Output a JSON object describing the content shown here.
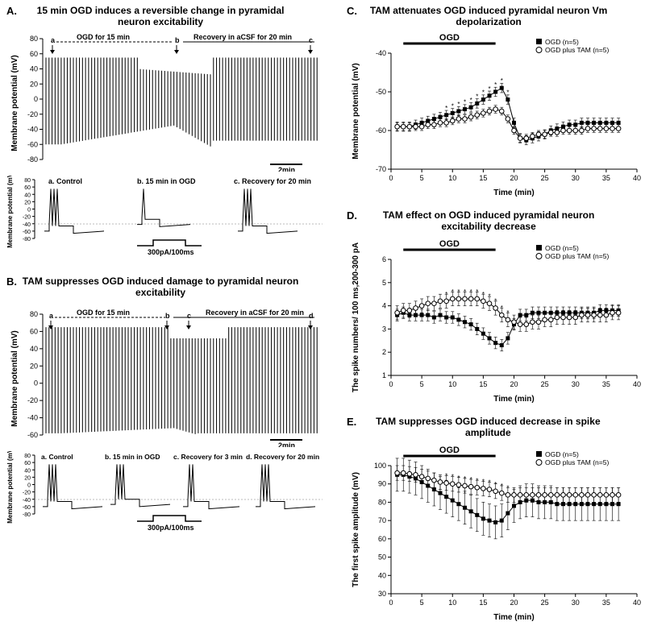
{
  "colors": {
    "bg": "#ffffff",
    "ink": "#000000",
    "trace": "#000000",
    "grid": "#e0e0e0"
  },
  "panelA": {
    "label": "A.",
    "title": "15 min OGD induces a reversible change in pyramidal neuron excitability",
    "annot_a": "a",
    "annot_b": "b",
    "annot_c": "c",
    "ogd_label": "OGD for 15 min",
    "recovery_label": "Recovery in aCSF for 20 min",
    "ylabel": "Membrane potential (mV)",
    "yticks": [
      -80,
      -60,
      -40,
      -20,
      0,
      20,
      40,
      60,
      80
    ],
    "scalebar": "2min",
    "inset": {
      "ylabel": "Membrane potential (mV)",
      "yticks": [
        -80,
        -60,
        -40,
        -20,
        0,
        20,
        40,
        60,
        80
      ],
      "labels": [
        "a. Control",
        "b. 15 min in OGD",
        "c. Recovery for 20 min"
      ],
      "stim": "300pA/100ms"
    }
  },
  "panelB": {
    "label": "B.",
    "title": "TAM suppresses OGD induced  damage to pyramidal neuron excitability",
    "annot_a": "a",
    "annot_b": "b",
    "annot_c": "c",
    "annot_d": "d",
    "ogd_label": "OGD  for 15 min",
    "recovery_label": "Recovery in aCSF for 20 min",
    "ylabel": "Membrane potential (mV)",
    "yticks": [
      -60,
      -40,
      -20,
      0,
      20,
      40,
      60,
      80
    ],
    "scalebar": "2min",
    "inset": {
      "ylabel": "Membrane potential (mV)",
      "yticks": [
        -80,
        -60,
        -40,
        -20,
        0,
        20,
        40,
        60,
        80
      ],
      "labels": [
        "a. Control",
        "b. 15 min in OGD",
        "c. Recovery for 3 min",
        "d. Recovery for 20 min"
      ],
      "stim": "300pA/100ms"
    }
  },
  "panelC": {
    "label": "C.",
    "title": "TAM attenuates OGD induced pyramidal neuron Vm depolarization",
    "ylabel": "Membrane potential (mV)",
    "xlabel": "Time (min)",
    "ylim": [
      -70,
      -40
    ],
    "ytick_step": 10,
    "xlim": [
      0,
      40
    ],
    "xtick_step": 5,
    "ogd_bar": {
      "start": 2,
      "end": 17,
      "label": "OGD"
    },
    "legend": {
      "ogd": "OGD (n=5)",
      "tam": "OGD plus TAM (n=5)"
    },
    "series": {
      "ogd_x": [
        1,
        2,
        3,
        4,
        5,
        6,
        7,
        8,
        9,
        10,
        11,
        12,
        13,
        14,
        15,
        16,
        17,
        18,
        19,
        20,
        21,
        22,
        23,
        24,
        25,
        26,
        27,
        28,
        29,
        30,
        31,
        32,
        33,
        34,
        35,
        36,
        37
      ],
      "ogd_y": [
        -59,
        -59,
        -59,
        -58.5,
        -58,
        -57.5,
        -57,
        -56.5,
        -56,
        -55.5,
        -55,
        -54.5,
        -54,
        -53,
        -52,
        -51,
        -50,
        -49,
        -52,
        -58,
        -62,
        -62.5,
        -62,
        -61.5,
        -61,
        -60,
        -59.5,
        -59,
        -58.5,
        -58.5,
        -58,
        -58,
        -58,
        -58,
        -58,
        -58,
        -58
      ],
      "ogd_err": 1.2,
      "tam_x": [
        1,
        2,
        3,
        4,
        5,
        6,
        7,
        8,
        9,
        10,
        11,
        12,
        13,
        14,
        15,
        16,
        17,
        18,
        19,
        20,
        21,
        22,
        23,
        24,
        25,
        26,
        27,
        28,
        29,
        30,
        31,
        32,
        33,
        34,
        35,
        36,
        37
      ],
      "tam_y": [
        -59,
        -59,
        -59,
        -59,
        -59,
        -58.5,
        -58.5,
        -58,
        -58,
        -57.5,
        -57,
        -57,
        -56.5,
        -56,
        -55.5,
        -55,
        -54.5,
        -55,
        -57,
        -60,
        -62,
        -62,
        -61.5,
        -61,
        -61,
        -60.5,
        -60.5,
        -60,
        -60,
        -60,
        -60,
        -59.5,
        -59.5,
        -59.5,
        -59.5,
        -59.5,
        -59.5
      ],
      "tam_err": 1.0
    },
    "marker_ogd": "square-filled",
    "marker_tam": "circle-open"
  },
  "panelD": {
    "label": "D.",
    "title": "TAM effect on OGD induced pyramidal neuron excitability decrease",
    "ylabel": "The spike numbers/ 100 ms,200-300 pA",
    "xlabel": "Time (min)",
    "ylim": [
      1,
      6
    ],
    "ytick_step": 1,
    "xlim": [
      0,
      40
    ],
    "xtick_step": 5,
    "ogd_bar": {
      "start": 2,
      "end": 17,
      "label": "OGD"
    },
    "legend": {
      "ogd": "OGD (n=5)",
      "tam": "OGD plus TAM (n=5)"
    },
    "series": {
      "ogd_x": [
        1,
        2,
        3,
        4,
        5,
        6,
        7,
        8,
        9,
        10,
        11,
        12,
        13,
        14,
        15,
        16,
        17,
        18,
        19,
        20,
        21,
        22,
        23,
        24,
        25,
        26,
        27,
        28,
        29,
        30,
        31,
        32,
        33,
        34,
        35,
        36,
        37
      ],
      "ogd_y": [
        3.6,
        3.7,
        3.6,
        3.6,
        3.6,
        3.6,
        3.5,
        3.6,
        3.5,
        3.5,
        3.4,
        3.3,
        3.2,
        3.0,
        2.8,
        2.6,
        2.4,
        2.3,
        2.6,
        3.2,
        3.6,
        3.6,
        3.7,
        3.7,
        3.7,
        3.7,
        3.7,
        3.7,
        3.7,
        3.7,
        3.7,
        3.7,
        3.7,
        3.8,
        3.8,
        3.8,
        3.8
      ],
      "ogd_err": 0.25,
      "tam_x": [
        1,
        2,
        3,
        4,
        5,
        6,
        7,
        8,
        9,
        10,
        11,
        12,
        13,
        14,
        15,
        16,
        17,
        18,
        19,
        20,
        21,
        22,
        23,
        24,
        25,
        26,
        27,
        28,
        29,
        30,
        31,
        32,
        33,
        34,
        35,
        36,
        37
      ],
      "tam_y": [
        3.7,
        3.8,
        3.8,
        3.9,
        4.0,
        4.1,
        4.1,
        4.2,
        4.2,
        4.3,
        4.3,
        4.3,
        4.3,
        4.3,
        4.2,
        4.1,
        3.9,
        3.6,
        3.4,
        3.3,
        3.2,
        3.2,
        3.3,
        3.3,
        3.4,
        3.4,
        3.5,
        3.5,
        3.5,
        3.5,
        3.6,
        3.6,
        3.6,
        3.6,
        3.6,
        3.7,
        3.7
      ],
      "tam_err": 0.3
    }
  },
  "panelE": {
    "label": "E.",
    "title": "TAM suppresses OGD induced decrease in spike  amplitude",
    "ylabel": "The first spike amplitude (mV)",
    "xlabel": "Time (min)",
    "ylim": [
      30,
      100
    ],
    "ytick_step": 10,
    "xlim": [
      0,
      40
    ],
    "xtick_step": 5,
    "ogd_bar": {
      "start": 2,
      "end": 17,
      "label": "OGD"
    },
    "legend": {
      "ogd": "OGD (n=5)",
      "tam": "OGD plus TAM (n=5)"
    },
    "series": {
      "ogd_x": [
        1,
        2,
        3,
        4,
        5,
        6,
        7,
        8,
        9,
        10,
        11,
        12,
        13,
        14,
        15,
        16,
        17,
        18,
        19,
        20,
        21,
        22,
        23,
        24,
        25,
        26,
        27,
        28,
        29,
        30,
        31,
        32,
        33,
        34,
        35,
        36,
        37
      ],
      "ogd_y": [
        95,
        95,
        94,
        93,
        91,
        89,
        87,
        85,
        83,
        81,
        79,
        77,
        75,
        73,
        71,
        70,
        69,
        70,
        74,
        78,
        80,
        81,
        81,
        80,
        80,
        80,
        79,
        79,
        79,
        79,
        79,
        79,
        79,
        79,
        79,
        79,
        79
      ],
      "ogd_err": 9,
      "tam_x": [
        1,
        2,
        3,
        4,
        5,
        6,
        7,
        8,
        9,
        10,
        11,
        12,
        13,
        14,
        15,
        16,
        17,
        18,
        19,
        20,
        21,
        22,
        23,
        24,
        25,
        26,
        27,
        28,
        29,
        30,
        31,
        32,
        33,
        34,
        35,
        36,
        37
      ],
      "tam_y": [
        96,
        96,
        95.5,
        95,
        94,
        93,
        92,
        91,
        90.5,
        90,
        89.5,
        89,
        88.5,
        88,
        87.5,
        87,
        86,
        85,
        84,
        84,
        84,
        84,
        84,
        84,
        84,
        84,
        84,
        84,
        84,
        84,
        84,
        84,
        84,
        84,
        84,
        84,
        84
      ],
      "tam_err": 4
    }
  }
}
